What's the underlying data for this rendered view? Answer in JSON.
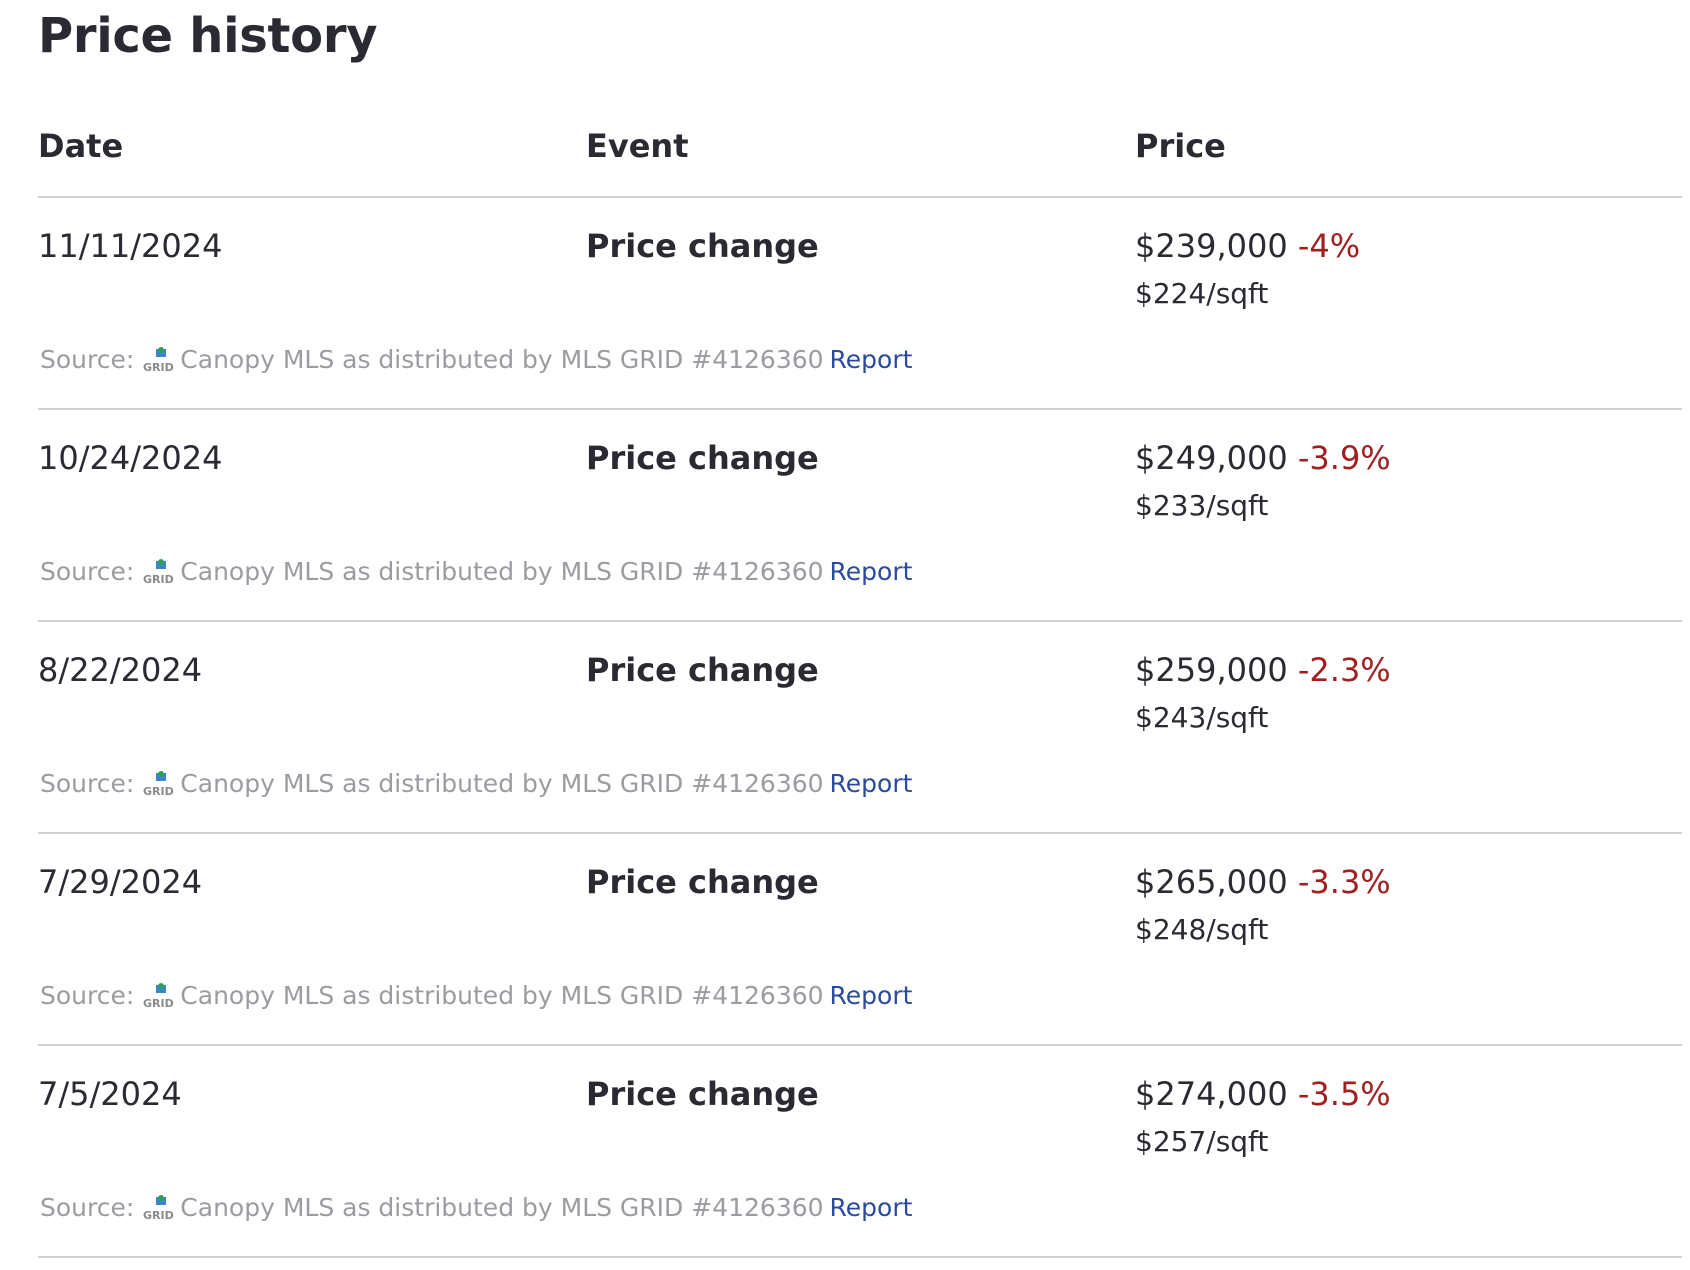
{
  "header": {
    "title": "Price history"
  },
  "columns": {
    "date": "Date",
    "event": "Event",
    "price": "Price"
  },
  "source": {
    "label": "Source:",
    "logo_icon": "grid-logo-icon",
    "provider": "Canopy MLS as distributed by MLS GRID #4126360",
    "report_label": "Report"
  },
  "colors": {
    "text": "#2a2a33",
    "negative_change": "#a31e1e",
    "link": "#2a4b9b",
    "muted": "#9b9ba1",
    "divider": "#d1d1d5"
  },
  "rows": [
    {
      "date": "11/11/2024",
      "event": "Price change",
      "price": "$239,000",
      "change": "-4%",
      "per_sqft": "$224/sqft"
    },
    {
      "date": "10/24/2024",
      "event": "Price change",
      "price": "$249,000",
      "change": "-3.9%",
      "per_sqft": "$233/sqft"
    },
    {
      "date": "8/22/2024",
      "event": "Price change",
      "price": "$259,000",
      "change": "-2.3%",
      "per_sqft": "$243/sqft"
    },
    {
      "date": "7/29/2024",
      "event": "Price change",
      "price": "$265,000",
      "change": "-3.3%",
      "per_sqft": "$248/sqft"
    },
    {
      "date": "7/5/2024",
      "event": "Price change",
      "price": "$274,000",
      "change": "-3.5%",
      "per_sqft": "$257/sqft"
    }
  ]
}
